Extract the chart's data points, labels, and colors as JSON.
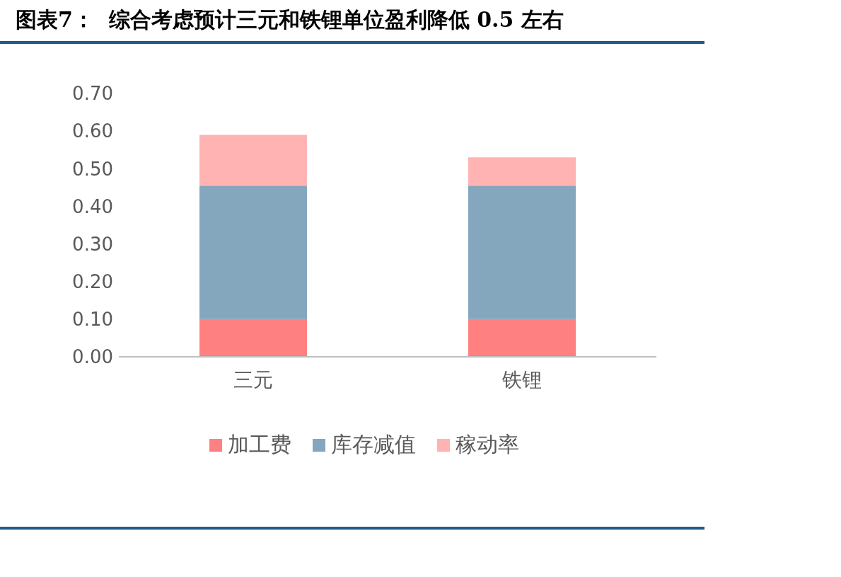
{
  "chart_data": {
    "type": "bar",
    "title": "图表7：  综合考虑预计三元和铁锂单位盈利降低 0.5 左右",
    "categories": [
      "三元",
      "铁锂"
    ],
    "stacked": true,
    "series": [
      {
        "name": "加工费",
        "color": "#ff8080",
        "values": [
          0.1,
          0.1
        ]
      },
      {
        "name": "库存减值",
        "color": "#84a7be",
        "values": [
          0.355,
          0.355
        ]
      },
      {
        "name": "稼动率",
        "color": "#ffb3b3",
        "values": [
          0.135,
          0.075
        ]
      }
    ],
    "ylim": [
      0,
      0.7
    ],
    "yticks": [
      {
        "value": 0,
        "label": "0.00"
      },
      {
        "value": 0.1,
        "label": "0.10"
      },
      {
        "value": 0.2,
        "label": "0.20"
      },
      {
        "value": 0.3,
        "label": "0.30"
      },
      {
        "value": 0.4,
        "label": "0.40"
      },
      {
        "value": 0.5,
        "label": "0.50"
      },
      {
        "value": 0.6,
        "label": "0.60"
      },
      {
        "value": 0.7,
        "label": "0.70"
      }
    ],
    "grid": false,
    "legend": "bottom"
  }
}
